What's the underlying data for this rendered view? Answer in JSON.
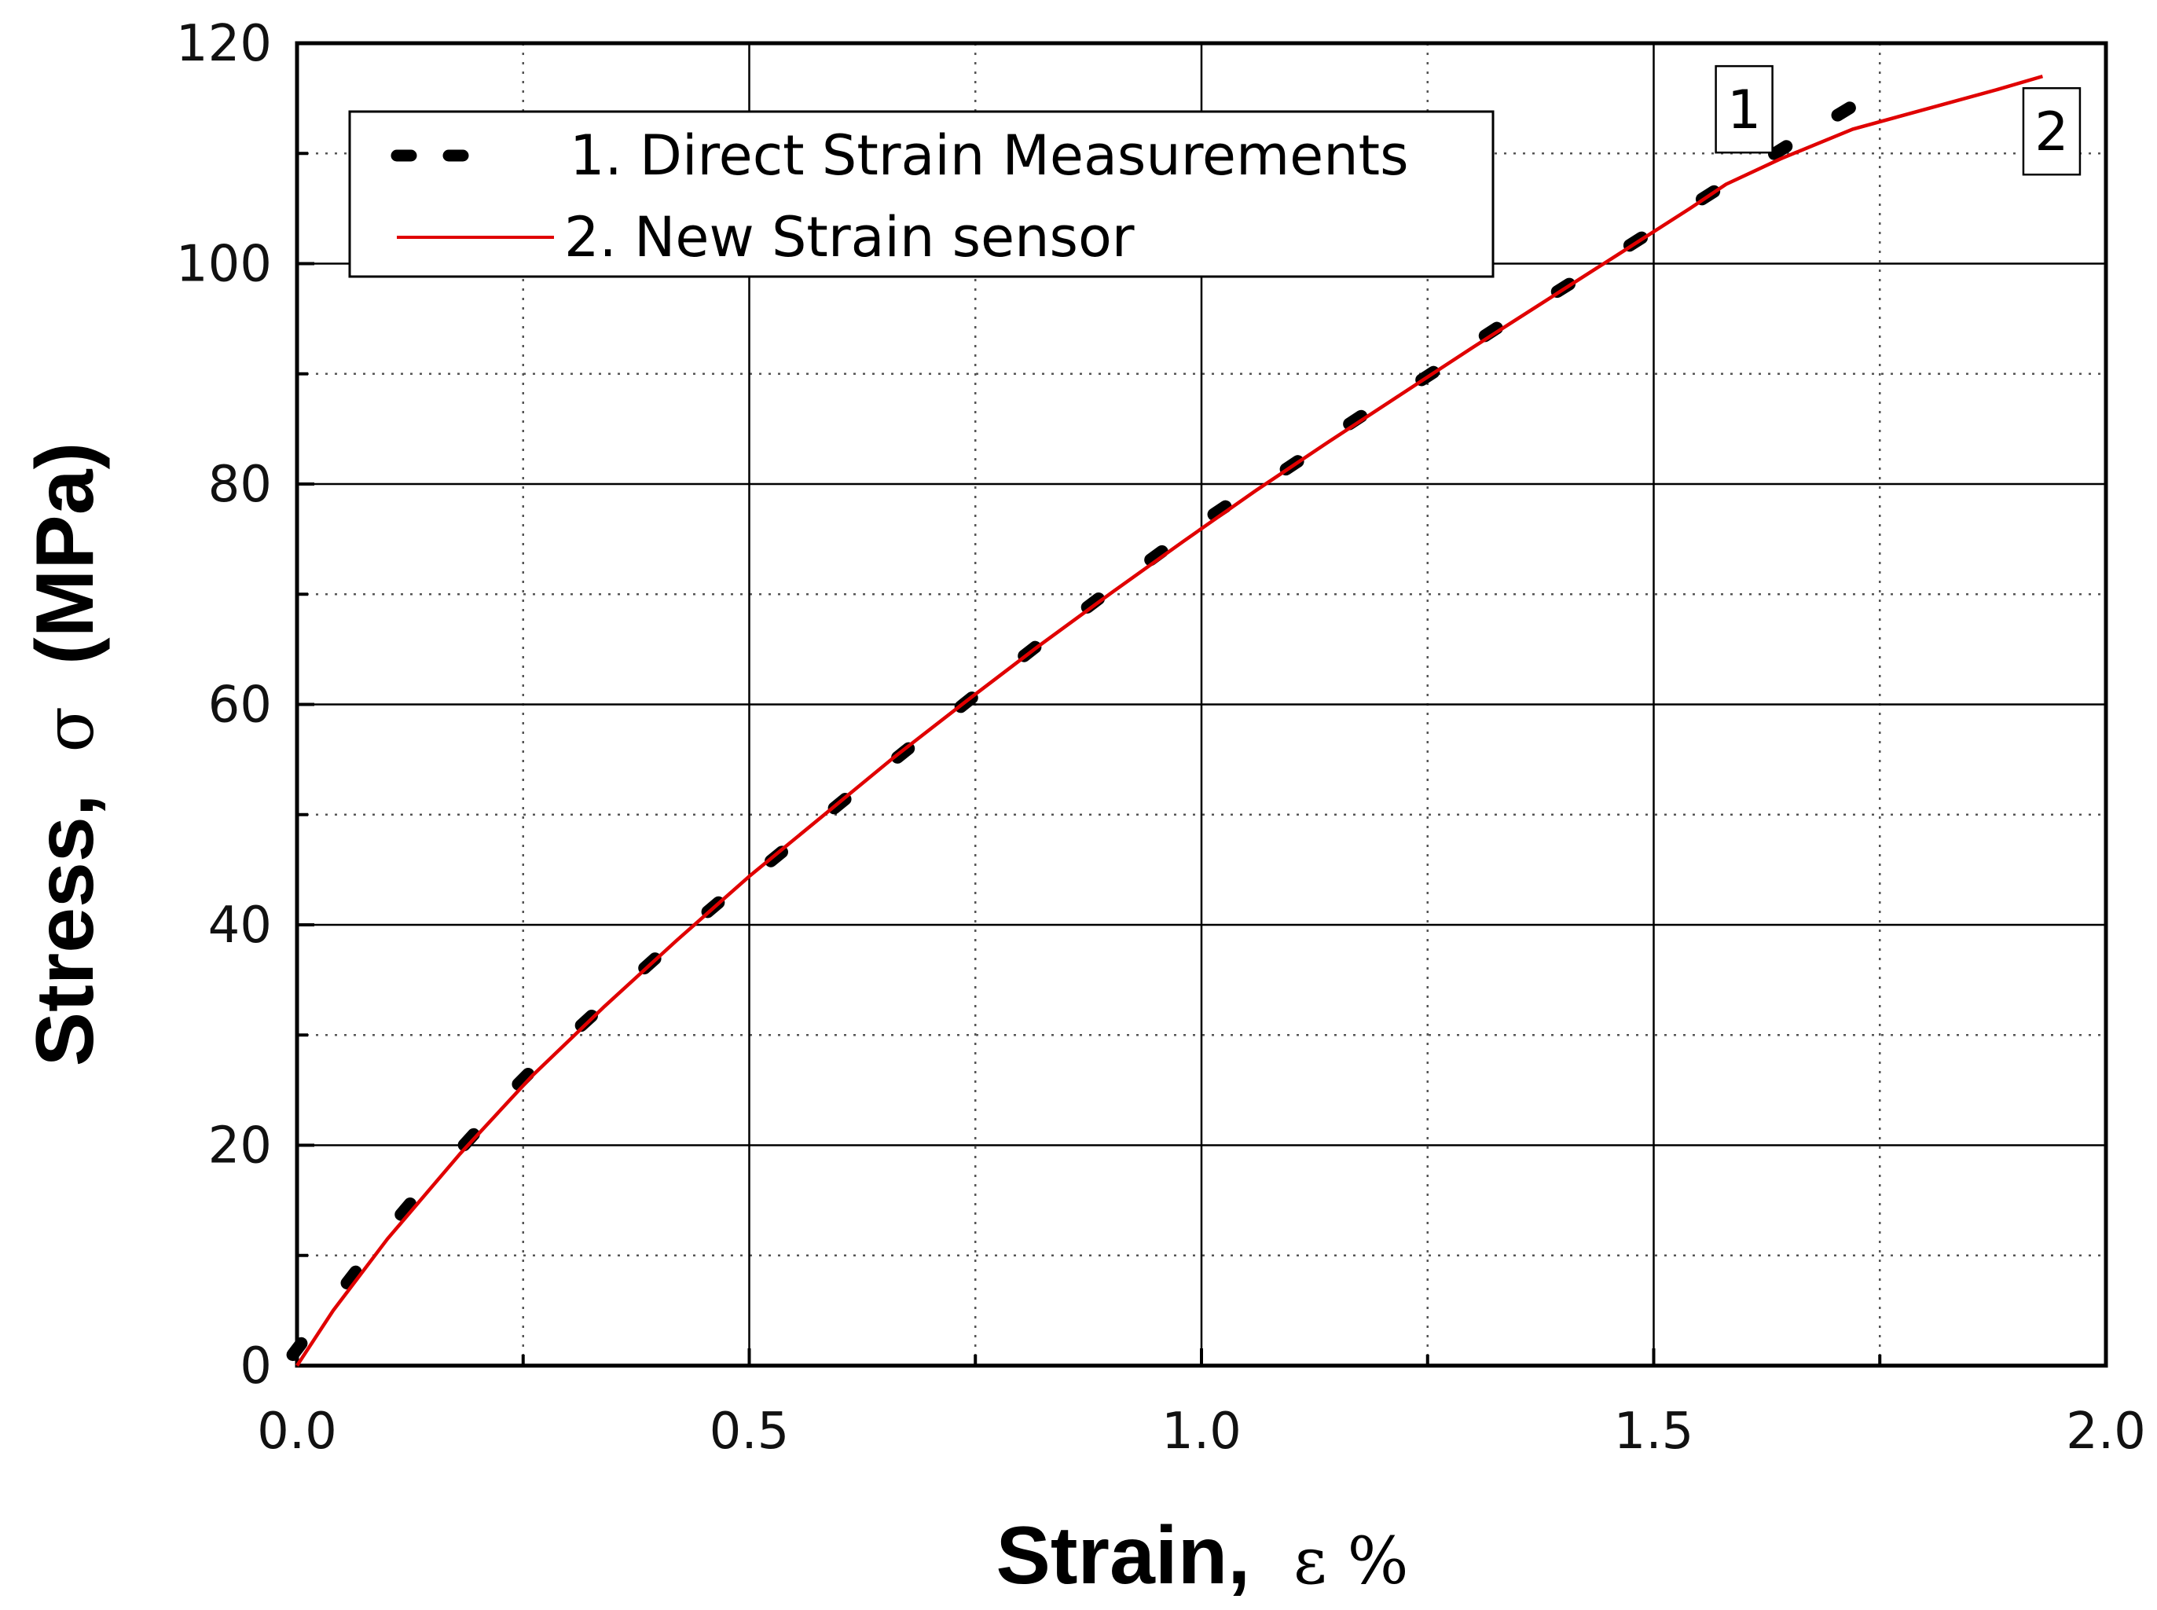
{
  "chart_data": {
    "type": "line",
    "xlabel_main": "Strain,",
    "xlabel_symbol": "ε %",
    "ylabel_main": "Stress,",
    "ylabel_symbol": "σ",
    "ylabel_unit": "(MPa)",
    "xlim": [
      0,
      2.0
    ],
    "ylim": [
      0,
      120
    ],
    "x_ticks": [
      "0.0",
      "0.5",
      "1.0",
      "1.5",
      "2.0"
    ],
    "y_ticks": [
      "0",
      "20",
      "40",
      "60",
      "80",
      "100",
      "120"
    ],
    "grid": true,
    "legend_position": "top-left",
    "series": [
      {
        "name": "1. Direct Strain Measurements",
        "style": "dotted",
        "color": "#000000",
        "x": [
          0.0,
          0.06,
          0.12,
          0.19,
          0.25,
          0.32,
          0.39,
          0.46,
          0.53,
          0.6,
          0.67,
          0.74,
          0.81,
          0.88,
          0.95,
          1.02,
          1.1,
          1.17,
          1.25,
          1.32,
          1.4,
          1.48,
          1.56,
          1.64,
          1.71
        ],
        "y": [
          1.5,
          8.0,
          14.2,
          20.5,
          26.0,
          31.3,
          36.5,
          41.6,
          46.2,
          51.0,
          55.6,
          60.2,
          64.8,
          69.2,
          73.5,
          77.6,
          81.7,
          85.8,
          89.8,
          93.8,
          97.8,
          102.0,
          106.2,
          110.3,
          113.8
        ]
      },
      {
        "name": "2. New Strain sensor",
        "style": "solid",
        "color": "#e00000",
        "x": [
          0.0,
          0.04,
          0.1,
          0.18,
          0.26,
          0.34,
          0.42,
          0.5,
          0.58,
          0.66,
          0.74,
          0.82,
          0.9,
          0.98,
          1.06,
          1.14,
          1.22,
          1.3,
          1.38,
          1.46,
          1.54,
          1.58,
          1.64,
          1.72,
          1.8,
          1.88,
          1.93
        ],
        "y": [
          0.0,
          5.0,
          11.5,
          19.2,
          26.3,
          32.6,
          38.6,
          44.4,
          49.8,
          55.2,
          60.3,
          65.3,
          70.1,
          74.8,
          79.4,
          83.8,
          88.1,
          92.4,
          96.6,
          100.8,
          105.0,
          107.2,
          109.5,
          112.2,
          114.0,
          115.8,
          117.0
        ]
      }
    ],
    "annotations": [
      {
        "text": "1",
        "x": 1.6,
        "y": 114.0
      },
      {
        "text": "2",
        "x": 1.94,
        "y": 112.0
      }
    ]
  }
}
